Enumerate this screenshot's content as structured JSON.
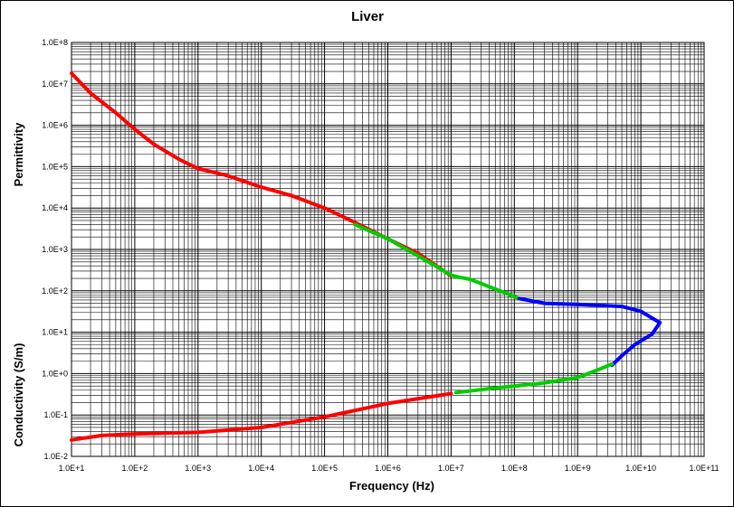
{
  "chart_data": {
    "type": "line",
    "title": "Liver",
    "xlabel": "Frequency (Hz)",
    "ylabel_upper": "Permittivity",
    "ylabel_lower": "Conductivity (S/m)",
    "x_scale": "log",
    "y_scale": "log",
    "xlim": [
      10,
      100000000000
    ],
    "ylim": [
      0.01,
      100000000
    ],
    "grid": true,
    "legend": "none",
    "x_ticks": [
      {
        "value": 10,
        "label": "1.0E+1"
      },
      {
        "value": 100,
        "label": "1.0E+2"
      },
      {
        "value": 1000,
        "label": "1.0E+3"
      },
      {
        "value": 10000,
        "label": "1.0E+4"
      },
      {
        "value": 100000,
        "label": "1.0E+5"
      },
      {
        "value": 1000000,
        "label": "1.0E+6"
      },
      {
        "value": 10000000,
        "label": "1.0E+7"
      },
      {
        "value": 100000000,
        "label": "1.0E+8"
      },
      {
        "value": 1000000000,
        "label": "1.0E+9"
      },
      {
        "value": 10000000000,
        "label": "1.0E+10"
      },
      {
        "value": 100000000000,
        "label": "1.0E+11"
      }
    ],
    "y_ticks": [
      {
        "value": 0.01,
        "label": "1.0E-2"
      },
      {
        "value": 0.1,
        "label": "1.0E-1"
      },
      {
        "value": 1,
        "label": "1.0E+0"
      },
      {
        "value": 10,
        "label": "1.0E+1"
      },
      {
        "value": 100,
        "label": "1.0E+2"
      },
      {
        "value": 1000,
        "label": "1.0E+3"
      },
      {
        "value": 10000,
        "label": "1.0E+4"
      },
      {
        "value": 100000,
        "label": "1.0E+5"
      },
      {
        "value": 1000000,
        "label": "1.0E+6"
      },
      {
        "value": 10000000,
        "label": "1.0E+7"
      },
      {
        "value": 100000000,
        "label": "1.0E+8"
      }
    ],
    "series": [
      {
        "color": "#ff0000",
        "points": [
          [
            10,
            18000000
          ],
          [
            20,
            6000000
          ],
          [
            50,
            2000000
          ],
          [
            100,
            800000
          ],
          [
            200,
            350000
          ],
          [
            500,
            150000
          ],
          [
            1000,
            90000
          ],
          [
            3000,
            60000
          ],
          [
            10000,
            32000
          ],
          [
            30000,
            20000
          ],
          [
            100000,
            10000
          ],
          [
            300000,
            4500
          ],
          [
            1000000,
            1800
          ],
          [
            3000000,
            800
          ],
          [
            10000000,
            230
          ]
        ]
      },
      {
        "color": "#00cc00",
        "points": [
          [
            300000,
            4000
          ],
          [
            1000000,
            1800
          ],
          [
            3000000,
            700
          ],
          [
            10000000,
            240
          ],
          [
            13000000,
            215
          ],
          [
            20000000,
            190
          ],
          [
            50000000,
            110
          ],
          [
            120000000,
            65
          ]
        ]
      },
      {
        "color": "#0000ff",
        "points": [
          [
            120000000,
            65
          ],
          [
            300000000,
            50
          ],
          [
            1000000000,
            47
          ],
          [
            5000000000,
            42
          ],
          [
            10000000000,
            32
          ],
          [
            15000000000,
            22
          ],
          [
            20000000000,
            17
          ],
          [
            15000000000,
            9
          ],
          [
            8000000000,
            5
          ],
          [
            5000000000,
            2.7
          ],
          [
            3500000000,
            1.6
          ]
        ]
      },
      {
        "color": "#00cc00",
        "points": [
          [
            12000000,
            0.35
          ],
          [
            50000000,
            0.45
          ],
          [
            100000000,
            0.5
          ],
          [
            300000000,
            0.6
          ],
          [
            1000000000,
            0.8
          ],
          [
            2000000000,
            1.2
          ],
          [
            3500000000,
            1.7
          ]
        ]
      },
      {
        "color": "#ff0000",
        "points": [
          [
            10,
            0.025
          ],
          [
            30,
            0.032
          ],
          [
            100,
            0.035
          ],
          [
            1000,
            0.038
          ],
          [
            10000,
            0.05
          ],
          [
            100000,
            0.09
          ],
          [
            1000000,
            0.19
          ],
          [
            10000000,
            0.33
          ]
        ]
      }
    ]
  }
}
